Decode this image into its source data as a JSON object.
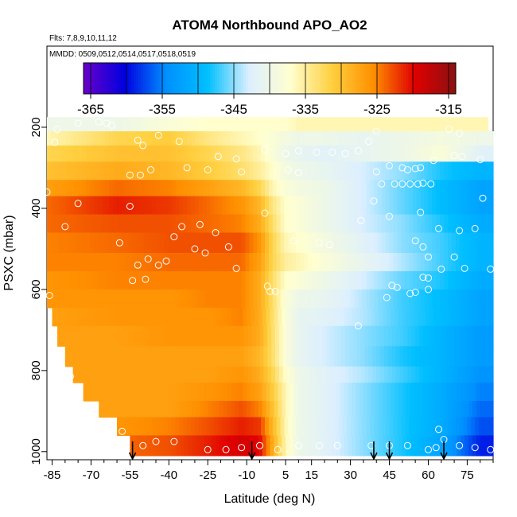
{
  "chart_data": {
    "type": "heatmap",
    "title": "ATOM4 Northbound APO_AO2",
    "flights_label": "Flts: 7,8,9,10,11,12",
    "dates_label": "MMDD: 0509,0512,0514,0517,0518,0519",
    "xlabel": "Latitude (deg N)",
    "ylabel": "PSXC (mbar)",
    "xlim": [
      -87,
      85
    ],
    "ylim": [
      1020,
      0
    ],
    "x_ticks": [
      -85,
      -70,
      -55,
      -40,
      -25,
      -10,
      5,
      15,
      30,
      45,
      60,
      75
    ],
    "x_tick_labels": [
      "-85",
      "-70",
      "-55",
      "-40",
      "-25",
      "-10",
      "5",
      "15",
      "30",
      "45",
      "60",
      "75"
    ],
    "x_minor_ticks": [
      -80,
      -75,
      -65,
      -60,
      -50,
      -45,
      -35,
      -30,
      -20,
      -15,
      -5,
      0,
      10,
      20,
      25,
      35,
      40,
      50,
      55,
      65,
      70,
      80,
      85
    ],
    "y_ticks": [
      200,
      400,
      600,
      800,
      1000
    ],
    "y_tick_labels": [
      "200",
      "400",
      "600",
      "800",
      "1000"
    ],
    "colorbar": {
      "ticks": [
        -365,
        -355,
        -345,
        -335,
        -325,
        -315
      ],
      "tick_labels": [
        "-365",
        "-355",
        "-345",
        "-335",
        "-325",
        "-315"
      ],
      "range": [
        -366,
        -314
      ],
      "colors": [
        "#6a00c8",
        "#0000e0",
        "#0090ff",
        "#00bfff",
        "#dcefff",
        "#ffffd0",
        "#ffd040",
        "#ff9000",
        "#e00000",
        "#8b1010"
      ]
    },
    "arrow_latitudes": [
      -54,
      -8,
      39,
      45,
      66
    ],
    "heatmap": {
      "lat_knots": [
        -87,
        -60,
        -40,
        -25,
        -12,
        -5,
        0,
        5,
        10,
        20,
        35,
        50,
        65,
        80,
        85
      ],
      "rows": [
        {
          "p": [
            175,
            210
          ],
          "lat": [
            -87,
            83
          ],
          "values": [
            -340,
            -340,
            -338,
            -337,
            -337,
            -337,
            -337,
            -337,
            -336,
            -336,
            -336,
            -336,
            -336,
            -336,
            -336
          ]
        },
        {
          "p": [
            210,
            245
          ],
          "lat": [
            -87,
            85
          ],
          "values": [
            -336,
            -332,
            -331,
            -334,
            -336,
            -337,
            -338,
            -339,
            -340,
            -340,
            -341,
            -340,
            -339,
            -340,
            -340
          ]
        },
        {
          "p": [
            245,
            285
          ],
          "lat": [
            -87,
            85
          ],
          "values": [
            -332,
            -330,
            -330,
            -332,
            -334,
            -336,
            -338,
            -340,
            -341,
            -342,
            -341,
            -340,
            -338,
            -342,
            -342
          ]
        },
        {
          "p": [
            285,
            330
          ],
          "lat": [
            -87,
            85
          ],
          "values": [
            -330,
            -328,
            -329,
            -331,
            -333,
            -335,
            -337,
            -339,
            -340,
            -341,
            -343,
            -345,
            -348,
            -350,
            -350
          ]
        },
        {
          "p": [
            330,
            370
          ],
          "lat": [
            -87,
            85
          ],
          "values": [
            -327,
            -324,
            -325,
            -327,
            -329,
            -332,
            -336,
            -338,
            -339,
            -340,
            -343,
            -346,
            -349,
            -352,
            -352
          ]
        },
        {
          "p": [
            370,
            415
          ],
          "lat": [
            -87,
            85
          ],
          "values": [
            -324,
            -321,
            -322,
            -324,
            -326,
            -329,
            -334,
            -337,
            -338,
            -340,
            -343,
            -346,
            -349,
            -352,
            -352
          ]
        },
        {
          "p": [
            415,
            460
          ],
          "lat": [
            -87,
            85
          ],
          "values": [
            -324,
            -323,
            -323,
            -324,
            -325,
            -328,
            -333,
            -337,
            -338,
            -340,
            -343,
            -345,
            -348,
            -351,
            -351
          ]
        },
        {
          "p": [
            460,
            510
          ],
          "lat": [
            -87,
            85
          ],
          "values": [
            -325,
            -324,
            -323,
            -323,
            -323,
            -326,
            -332,
            -336,
            -337,
            -339,
            -342,
            -345,
            -347,
            -350,
            -350
          ]
        },
        {
          "p": [
            510,
            555
          ],
          "lat": [
            -87,
            85
          ],
          "values": [
            -325,
            -325,
            -324,
            -324,
            -324,
            -327,
            -332,
            -335,
            -336,
            -338,
            -341,
            -344,
            -347,
            -350,
            -350
          ]
        },
        {
          "p": [
            555,
            600
          ],
          "lat": [
            -87,
            85
          ],
          "values": [
            -326,
            -325,
            -325,
            -325,
            -325,
            -328,
            -333,
            -337,
            -338,
            -340,
            -343,
            -346,
            -348,
            -351,
            -351
          ]
        },
        {
          "p": [
            600,
            645
          ],
          "lat": [
            -87,
            85
          ],
          "values": [
            -326,
            -326,
            -326,
            -325,
            -325,
            -328,
            -333,
            -338,
            -340,
            -341,
            -344,
            -347,
            -349,
            -352,
            -352
          ]
        },
        {
          "p": [
            645,
            690
          ],
          "lat": [
            -85,
            85
          ],
          "values": [
            -327,
            -326,
            -326,
            -326,
            -325,
            -328,
            -333,
            -338,
            -341,
            -342,
            -344,
            -347,
            -349,
            -352,
            -352
          ]
        },
        {
          "p": [
            690,
            740
          ],
          "lat": [
            -83,
            85
          ],
          "values": [
            -327,
            -327,
            -326,
            -326,
            -326,
            -328,
            -333,
            -338,
            -341,
            -343,
            -345,
            -347,
            -350,
            -353,
            -353
          ]
        },
        {
          "p": [
            740,
            790
          ],
          "lat": [
            -80,
            85
          ],
          "values": [
            -327,
            -327,
            -327,
            -327,
            -327,
            -329,
            -333,
            -338,
            -341,
            -343,
            -345,
            -348,
            -350,
            -353,
            -353
          ]
        },
        {
          "p": [
            790,
            830
          ],
          "lat": [
            -77,
            85
          ],
          "values": [
            -327,
            -327,
            -327,
            -327,
            -326,
            -328,
            -332,
            -337,
            -340,
            -342,
            -344,
            -347,
            -350,
            -354,
            -354
          ]
        },
        {
          "p": [
            830,
            875
          ],
          "lat": [
            -73,
            85
          ],
          "values": [
            -327,
            -327,
            -327,
            -326,
            -325,
            -327,
            -331,
            -336,
            -340,
            -342,
            -345,
            -348,
            -351,
            -355,
            -355
          ]
        },
        {
          "p": [
            875,
            915
          ],
          "lat": [
            -67,
            85
          ],
          "values": [
            -327,
            -327,
            -327,
            -325,
            -323,
            -325,
            -330,
            -336,
            -340,
            -342,
            -345,
            -348,
            -351,
            -356,
            -356
          ]
        },
        {
          "p": [
            915,
            960
          ],
          "lat": [
            -60,
            85
          ],
          "values": [
            -326,
            -326,
            -325,
            -323,
            -321,
            -322,
            -329,
            -336,
            -340,
            -342,
            -345,
            -348,
            -351,
            -357,
            -357
          ]
        },
        {
          "p": [
            960,
            1010
          ],
          "lat": [
            -55,
            85
          ],
          "values": [
            -325,
            -324,
            -323,
            -321,
            -319,
            -320,
            -328,
            -336,
            -340,
            -342,
            -345,
            -348,
            -352,
            -359,
            -359
          ]
        }
      ]
    },
    "points": [
      {
        "lat": -83,
        "p": 205
      },
      {
        "lat": -75,
        "p": 190
      },
      {
        "lat": -67,
        "p": 187
      },
      {
        "lat": -64,
        "p": 190
      },
      {
        "lat": -62,
        "p": 195
      },
      {
        "lat": -84,
        "p": 237
      },
      {
        "lat": -52,
        "p": 232
      },
      {
        "lat": -50,
        "p": 245
      },
      {
        "lat": -44,
        "p": 220
      },
      {
        "lat": -36,
        "p": 235
      },
      {
        "lat": -21,
        "p": 272
      },
      {
        "lat": -14,
        "p": 278
      },
      {
        "lat": -3,
        "p": 255
      },
      {
        "lat": 5,
        "p": 265
      },
      {
        "lat": 10,
        "p": 258
      },
      {
        "lat": 17,
        "p": 262
      },
      {
        "lat": 23,
        "p": 262
      },
      {
        "lat": 28,
        "p": 265
      },
      {
        "lat": 33,
        "p": 258
      },
      {
        "lat": 37,
        "p": 235
      },
      {
        "lat": 40,
        "p": 210
      },
      {
        "lat": 68,
        "p": 205
      },
      {
        "lat": 72,
        "p": 215
      },
      {
        "lat": 70,
        "p": 270
      },
      {
        "lat": 73,
        "p": 272
      },
      {
        "lat": 80,
        "p": 280
      },
      {
        "lat": 62,
        "p": 282
      },
      {
        "lat": -55,
        "p": 318
      },
      {
        "lat": -51,
        "p": 318
      },
      {
        "lat": -47,
        "p": 305
      },
      {
        "lat": -33,
        "p": 300
      },
      {
        "lat": -25,
        "p": 305
      },
      {
        "lat": -12,
        "p": 310
      },
      {
        "lat": 6,
        "p": 305
      },
      {
        "lat": 10,
        "p": 312
      },
      {
        "lat": 40,
        "p": 310
      },
      {
        "lat": 45,
        "p": 295
      },
      {
        "lat": 50,
        "p": 300
      },
      {
        "lat": 52,
        "p": 305
      },
      {
        "lat": 55,
        "p": 302
      },
      {
        "lat": 57,
        "p": 300
      },
      {
        "lat": 42,
        "p": 340
      },
      {
        "lat": 47,
        "p": 340
      },
      {
        "lat": 50,
        "p": 340
      },
      {
        "lat": 53,
        "p": 340
      },
      {
        "lat": 56,
        "p": 340
      },
      {
        "lat": 58,
        "p": 338
      },
      {
        "lat": 61,
        "p": 340
      },
      {
        "lat": 39,
        "p": 382
      },
      {
        "lat": 81,
        "p": 375
      },
      {
        "lat": -87,
        "p": 360
      },
      {
        "lat": -75,
        "p": 388
      },
      {
        "lat": -55,
        "p": 395
      },
      {
        "lat": -3,
        "p": 412
      },
      {
        "lat": 34,
        "p": 430
      },
      {
        "lat": 45,
        "p": 420
      },
      {
        "lat": 57,
        "p": 410
      },
      {
        "lat": -80,
        "p": 445
      },
      {
        "lat": -35,
        "p": 445
      },
      {
        "lat": -28,
        "p": 440
      },
      {
        "lat": -22,
        "p": 460
      },
      {
        "lat": -38,
        "p": 470
      },
      {
        "lat": -17,
        "p": 495
      },
      {
        "lat": 8,
        "p": 480
      },
      {
        "lat": 18,
        "p": 485
      },
      {
        "lat": 22,
        "p": 490
      },
      {
        "lat": 64,
        "p": 450
      },
      {
        "lat": 72,
        "p": 455
      },
      {
        "lat": 78,
        "p": 450
      },
      {
        "lat": 55,
        "p": 480
      },
      {
        "lat": 58,
        "p": 495
      },
      {
        "lat": -59,
        "p": 485
      },
      {
        "lat": -30,
        "p": 500
      },
      {
        "lat": -26,
        "p": 510
      },
      {
        "lat": -52,
        "p": 540
      },
      {
        "lat": -48,
        "p": 525
      },
      {
        "lat": -44,
        "p": 540
      },
      {
        "lat": -41,
        "p": 530
      },
      {
        "lat": -14,
        "p": 548
      },
      {
        "lat": 60,
        "p": 520
      },
      {
        "lat": 65,
        "p": 550
      },
      {
        "lat": 70,
        "p": 520
      },
      {
        "lat": 74,
        "p": 548
      },
      {
        "lat": 84,
        "p": 550
      },
      {
        "lat": -54,
        "p": 578
      },
      {
        "lat": -49,
        "p": 575
      },
      {
        "lat": 58,
        "p": 570
      },
      {
        "lat": 60,
        "p": 572
      },
      {
        "lat": -86,
        "p": 615
      },
      {
        "lat": -2,
        "p": 592
      },
      {
        "lat": -1,
        "p": 605
      },
      {
        "lat": 1,
        "p": 605
      },
      {
        "lat": 46,
        "p": 590
      },
      {
        "lat": 48,
        "p": 595
      },
      {
        "lat": 53,
        "p": 610
      },
      {
        "lat": 55,
        "p": 607
      },
      {
        "lat": 60,
        "p": 600
      },
      {
        "lat": 44,
        "p": 620
      },
      {
        "lat": 33,
        "p": 690
      },
      {
        "lat": -78,
        "p": 815
      },
      {
        "lat": -58,
        "p": 950
      },
      {
        "lat": -50,
        "p": 985
      },
      {
        "lat": -45,
        "p": 975
      },
      {
        "lat": -38,
        "p": 975
      },
      {
        "lat": -25,
        "p": 995
      },
      {
        "lat": -18,
        "p": 995
      },
      {
        "lat": -12,
        "p": 990
      },
      {
        "lat": -5,
        "p": 985
      },
      {
        "lat": 2,
        "p": 995
      },
      {
        "lat": 10,
        "p": 985
      },
      {
        "lat": 18,
        "p": 985
      },
      {
        "lat": 25,
        "p": 985
      },
      {
        "lat": 38,
        "p": 985
      },
      {
        "lat": 45,
        "p": 985
      },
      {
        "lat": 52,
        "p": 985
      },
      {
        "lat": 60,
        "p": 995
      },
      {
        "lat": 63,
        "p": 990
      },
      {
        "lat": 66,
        "p": 970
      },
      {
        "lat": 72,
        "p": 985
      },
      {
        "lat": 78,
        "p": 990
      },
      {
        "lat": 84,
        "p": 995
      },
      {
        "lat": 64,
        "p": 945
      }
    ]
  }
}
